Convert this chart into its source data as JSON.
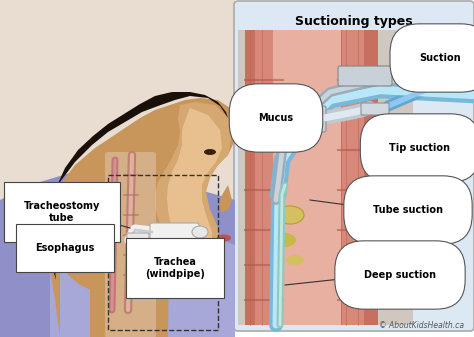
{
  "title": "Suctioning types",
  "background_color": "#ffffff",
  "fig_width": 4.74,
  "fig_height": 3.37,
  "dpi": 100,
  "labels": {
    "tracheostomy_tube": "Tracheostomy\ntube",
    "esophagus": "Esophagus",
    "trachea": "Trachea\n(windpipe)",
    "mucus": "Mucus",
    "suction": "Suction",
    "tip_suction": "Tip suction",
    "tube_suction": "Tube suction",
    "deep_suction": "Deep suction",
    "copyright": "© AboutKidsHealth.ca"
  },
  "skin_dark": "#c8965a",
  "skin_mid": "#d4a870",
  "skin_light": "#e8c090",
  "hair_color": "#1a100a",
  "shirt_color": "#9090c8",
  "shirt_color2": "#a8a8d8",
  "bg_left": "#e8ddd0",
  "bg_right_panel": "#dce8f4",
  "trachea_wall": "#c87060",
  "trachea_inner": "#d89080",
  "trachea_bg": "#e8b0a0",
  "trachea_stripe": "#b86050",
  "tube_gray1": "#9aabba",
  "tube_gray2": "#c8d4dc",
  "tube_blue": "#78b8d8",
  "tube_teal": "#90c8c0",
  "tube_yellow": "#d4c060",
  "label_box_color": "#ffffff",
  "label_edge_color": "#555555",
  "label_fontsize": 7,
  "title_fontsize": 9,
  "copyright_fontsize": 5.5
}
